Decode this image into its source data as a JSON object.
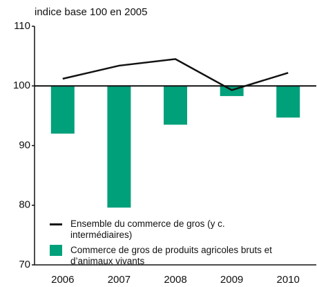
{
  "chart_data": {
    "type": "bar_line",
    "y_axis_label": "indice base 100 en 2005",
    "categories": [
      "2006",
      "2007",
      "2008",
      "2009",
      "2010"
    ],
    "baseline": 100,
    "series": [
      {
        "name": "Ensemble du commerce de gros (y c. intermédiaires)",
        "type": "line",
        "color": "#111111",
        "values": [
          101.2,
          103.4,
          104.5,
          99.3,
          102.2
        ]
      },
      {
        "name": "Commerce de gros de produits agricoles bruts et d’animaux vivants",
        "type": "bar",
        "color": "#00a07a",
        "values": [
          92.0,
          79.6,
          93.5,
          98.3,
          94.7
        ]
      }
    ],
    "ylim": [
      70,
      110
    ],
    "yticks": [
      70,
      80,
      90,
      100,
      110
    ]
  }
}
